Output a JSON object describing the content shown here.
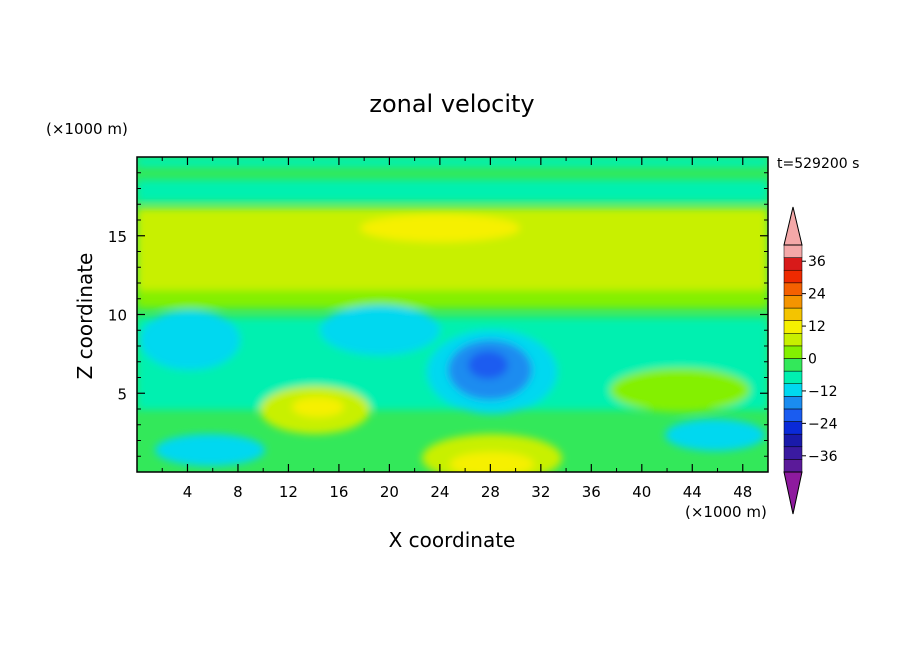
{
  "chart_data": {
    "type": "heatmap",
    "title": "zonal velocity",
    "xlabel": "X coordinate",
    "ylabel": "Z coordinate",
    "x_unit": "(×1000 m)",
    "y_unit": "(×1000 m)",
    "time_label": "t=529200 s",
    "xlim": [
      0,
      50
    ],
    "ylim": [
      0,
      20
    ],
    "x_ticks": [
      4,
      8,
      12,
      16,
      20,
      24,
      28,
      32,
      36,
      40,
      44,
      48
    ],
    "y_ticks": [
      5,
      10,
      15
    ],
    "colorbar": {
      "min": -42,
      "max": 42,
      "step": 6,
      "tick_labels": [
        -36,
        -24,
        -12,
        0,
        12,
        24,
        36
      ],
      "colors": [
        "#5b1a99",
        "#3a1aa0",
        "#1a1aaa",
        "#0a2ad8",
        "#1a5cf0",
        "#1a8cf0",
        "#00d8f0",
        "#00f0b0",
        "#33e85a",
        "#84f000",
        "#c8f000",
        "#f6f000",
        "#f4c400",
        "#f49400",
        "#f46000",
        "#ee2a00",
        "#d81a1a",
        "#f4a8a8"
      ],
      "over_color": "#f4a8a8",
      "under_color": "#8e1a9e"
    },
    "features": [
      {
        "x": 27.5,
        "z": 6.5,
        "value": -22
      },
      {
        "x": 29,
        "z": 1,
        "value": 10
      },
      {
        "x": 24,
        "z": 15.5,
        "value": 10
      },
      {
        "x": 14.5,
        "z": 4,
        "value": 8
      },
      {
        "x": 46,
        "z": 2.5,
        "value": -10
      }
    ]
  }
}
